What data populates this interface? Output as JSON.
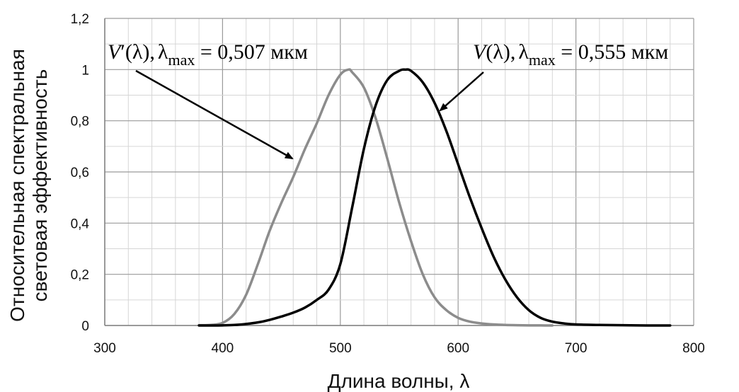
{
  "chart_data": {
    "type": "line",
    "xlabel": "Длина волны, λ",
    "ylabel_line1": "Относительная спектральная",
    "ylabel_line2": "световая эффективность",
    "xlim": [
      300,
      800
    ],
    "ylim": [
      0,
      1.2
    ],
    "x_ticks": [
      "300",
      "400",
      "500",
      "600",
      "700",
      "800"
    ],
    "y_ticks": [
      "0",
      "0,2",
      "0,4",
      "0,6",
      "0,8",
      "1",
      "1,2"
    ],
    "grid": true,
    "series": [
      {
        "name": "V′(λ)",
        "color": "#8c8c8c",
        "x": [
          380,
          390,
          400,
          410,
          420,
          430,
          440,
          450,
          460,
          470,
          480,
          490,
          500,
          507,
          510,
          520,
          530,
          540,
          550,
          560,
          570,
          580,
          590,
          600,
          610,
          620,
          630,
          640,
          650,
          660,
          670,
          680
        ],
        "y": [
          0.001,
          0.002,
          0.01,
          0.045,
          0.12,
          0.24,
          0.37,
          0.48,
          0.58,
          0.69,
          0.79,
          0.9,
          0.98,
          1.0,
          0.99,
          0.93,
          0.81,
          0.65,
          0.48,
          0.33,
          0.2,
          0.11,
          0.06,
          0.03,
          0.015,
          0.008,
          0.004,
          0.002,
          0.001,
          0.0005,
          0.0002,
          0.0001
        ]
      },
      {
        "name": "V(λ)",
        "color": "#000000",
        "x": [
          380,
          390,
          400,
          410,
          420,
          430,
          440,
          450,
          460,
          470,
          480,
          490,
          500,
          510,
          520,
          530,
          540,
          550,
          555,
          560,
          570,
          580,
          590,
          600,
          610,
          620,
          630,
          640,
          650,
          660,
          670,
          680,
          690,
          700,
          720,
          740,
          760,
          780
        ],
        "y": [
          0.0,
          0.0,
          0.0005,
          0.002,
          0.006,
          0.012,
          0.022,
          0.035,
          0.05,
          0.07,
          0.1,
          0.14,
          0.24,
          0.46,
          0.69,
          0.86,
          0.96,
          0.995,
          1.0,
          0.995,
          0.95,
          0.87,
          0.76,
          0.63,
          0.5,
          0.38,
          0.27,
          0.18,
          0.11,
          0.06,
          0.03,
          0.015,
          0.008,
          0.004,
          0.002,
          0.001,
          0.0,
          0.0
        ]
      }
    ],
    "annotations": [
      {
        "label": "V′(λ), λmax = 0,507 мкм",
        "points_to": {
          "x": 463,
          "y": 0.65
        }
      },
      {
        "label": "V(λ), λmax = 0,555 мкм",
        "points_to": {
          "x": 583,
          "y": 0.83
        }
      }
    ]
  },
  "annot1": {
    "V": "V",
    "prime_lambda": "′(λ),",
    "lambda": "λ",
    "sub": "max",
    "value": " = 0,507 мкм"
  },
  "annot2": {
    "V": "V",
    "lambda_part": "(λ),",
    "lambda": "λ",
    "sub": "max",
    "value": " = 0,555 мкм"
  }
}
